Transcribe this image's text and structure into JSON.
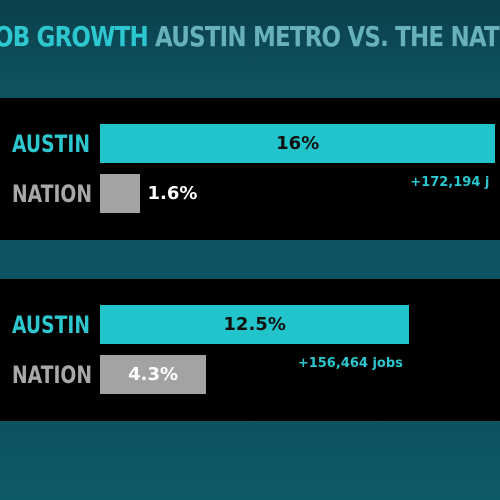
{
  "title": {
    "highlight": "OB GROWTH",
    "rest": " AUSTIN METRO VS. THE NATIO"
  },
  "colors": {
    "austin": "#22c4cc",
    "nation": "#a3a3a3",
    "panel": "#000000",
    "background": "#0c4e5c"
  },
  "chart_data": [
    {
      "type": "bar",
      "orientation": "horizontal",
      "categories": [
        "AUSTIN",
        "NATION"
      ],
      "values": [
        16,
        1.6
      ],
      "value_labels": [
        "16%",
        "1.6%"
      ],
      "annotation": "+172,194 j",
      "xlim": [
        0,
        17
      ]
    },
    {
      "type": "bar",
      "orientation": "horizontal",
      "categories": [
        "AUSTIN",
        "NATION"
      ],
      "values": [
        12.5,
        4.3
      ],
      "value_labels": [
        "12.5%",
        "4.3%"
      ],
      "annotation": "+156,464 jobs",
      "xlim": [
        0,
        17
      ]
    }
  ]
}
